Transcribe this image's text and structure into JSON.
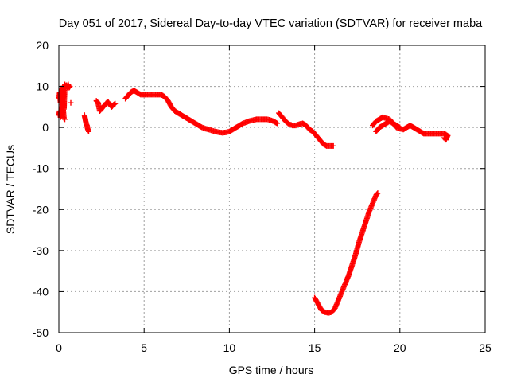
{
  "chart_data": {
    "type": "scatter",
    "title": "Day 051 of 2017, Sidereal Day-to-day VTEC variation (SDTVAR) for receiver maba",
    "xlabel": "GPS time / hours",
    "ylabel": "SDTVAR / TECUs",
    "xlim": [
      0,
      25
    ],
    "ylim": [
      -50,
      20
    ],
    "xticks": [
      "0",
      "5",
      "10",
      "15",
      "20",
      "25"
    ],
    "yticks": [
      "20",
      "10",
      "0",
      "-10",
      "-20",
      "-30",
      "-40",
      "-50"
    ],
    "grid": true,
    "marker": "plus",
    "colors": {
      "series": "#ff0000",
      "axes": "#000000",
      "grid": "#a0a0a0"
    },
    "series": [
      {
        "name": "SDTVAR",
        "segments": [
          {
            "x": [
              0.0,
              0.05,
              0.1,
              0.15,
              0.2,
              0.25,
              0.3,
              0.35,
              0.4,
              0.45,
              0.5,
              0.55,
              0.6,
              0.65
            ],
            "y": [
              7.0,
              8.5,
              6.0,
              9.5,
              5.0,
              10.0,
              4.5,
              10.5,
              10.0,
              10.3,
              9.8,
              10.5,
              9.7,
              10.0
            ]
          },
          {
            "x": [
              0.0,
              0.05,
              0.1,
              0.15,
              0.2,
              0.25,
              0.3,
              0.35
            ],
            "y": [
              3.0,
              4.0,
              2.5,
              5.0,
              3.0,
              4.5,
              2.2,
              2.0
            ]
          },
          {
            "x": [
              0.7
            ],
            "y": [
              6.0
            ]
          },
          {
            "x": [
              1.5,
              1.55,
              1.6,
              1.65,
              1.7,
              1.75
            ],
            "y": [
              3.0,
              2.0,
              1.0,
              0.5,
              -0.5,
              -1.0
            ]
          },
          {
            "x": [
              2.2,
              2.3,
              2.4,
              2.5,
              2.6,
              2.7,
              2.8,
              2.9,
              3.0,
              3.1,
              3.2,
              3.3
            ],
            "y": [
              6.5,
              6.0,
              4.0,
              4.5,
              5.0,
              5.5,
              6.0,
              6.2,
              5.5,
              5.0,
              5.5,
              5.8
            ]
          },
          {
            "x": [
              3.9,
              4.0,
              4.2,
              4.4,
              4.6,
              4.8,
              5.0,
              5.2,
              5.4,
              5.6,
              5.8,
              6.0,
              6.2,
              6.4,
              6.6,
              6.8,
              7.0,
              7.2,
              7.4,
              7.6,
              7.8,
              8.0,
              8.2,
              8.4,
              8.6,
              8.8,
              9.0,
              9.2,
              9.4,
              9.6,
              9.8,
              10.0,
              10.2,
              10.4,
              10.6,
              10.8,
              11.0,
              11.2,
              11.4,
              11.6,
              11.8,
              12.0,
              12.2,
              12.4,
              12.6,
              12.8
            ],
            "y": [
              7.0,
              7.5,
              8.5,
              9.0,
              8.5,
              8.0,
              8.0,
              8.0,
              8.0,
              8.0,
              8.0,
              8.0,
              7.5,
              6.5,
              5.0,
              4.0,
              3.5,
              3.0,
              2.5,
              2.0,
              1.5,
              1.0,
              0.5,
              0.0,
              -0.3,
              -0.5,
              -0.8,
              -1.0,
              -1.2,
              -1.3,
              -1.2,
              -1.0,
              -0.5,
              0.0,
              0.5,
              1.0,
              1.3,
              1.6,
              1.8,
              2.0,
              2.0,
              2.0,
              2.0,
              1.8,
              1.5,
              1.0
            ]
          },
          {
            "x": [
              12.9,
              13.1,
              13.3,
              13.5,
              13.7,
              13.9,
              14.1,
              14.3,
              14.5,
              14.7,
              14.9,
              15.1,
              15.3,
              15.5,
              15.7,
              15.9,
              16.1
            ],
            "y": [
              3.5,
              2.5,
              1.5,
              0.8,
              0.5,
              0.5,
              0.8,
              1.0,
              0.5,
              -0.5,
              -1.0,
              -2.0,
              -3.0,
              -4.0,
              -4.5,
              -4.5,
              -4.5
            ]
          },
          {
            "x": [
              15.0,
              15.2,
              15.4,
              15.6,
              15.8,
              16.0,
              16.2,
              16.4,
              16.6,
              16.8,
              17.0,
              17.2,
              17.4,
              17.6,
              17.8,
              18.0,
              18.2,
              18.4,
              18.6,
              18.7
            ],
            "y": [
              -41.5,
              -43.0,
              -44.5,
              -45.0,
              -45.2,
              -45.0,
              -44.0,
              -42.0,
              -40.0,
              -38.0,
              -36.0,
              -33.5,
              -31.0,
              -28.0,
              -25.5,
              -23.0,
              -20.5,
              -18.5,
              -16.5,
              -16.0
            ]
          },
          {
            "x": [
              18.4,
              18.6,
              18.8,
              19.0,
              19.2,
              19.4,
              19.6,
              19.8,
              20.0,
              20.2,
              20.4,
              20.6,
              20.8,
              21.0,
              21.2,
              21.4,
              21.6,
              21.8,
              22.0,
              22.2,
              22.4,
              22.6,
              22.8
            ],
            "y": [
              0.5,
              1.5,
              2.0,
              2.5,
              2.2,
              2.0,
              1.0,
              0.0,
              -0.3,
              -0.5,
              0.0,
              0.5,
              0.0,
              -0.5,
              -1.0,
              -1.5,
              -1.5,
              -1.5,
              -1.5,
              -1.5,
              -1.5,
              -1.5,
              -2.0
            ]
          },
          {
            "x": [
              18.6,
              18.8,
              19.0,
              19.2,
              19.4,
              19.6,
              19.8,
              20.0
            ],
            "y": [
              -1.0,
              0.0,
              0.5,
              1.0,
              1.5,
              1.0,
              0.5,
              0.0
            ]
          },
          {
            "x": [
              22.6,
              22.7,
              22.8
            ],
            "y": [
              -2.5,
              -3.0,
              -2.0
            ]
          }
        ]
      }
    ]
  }
}
